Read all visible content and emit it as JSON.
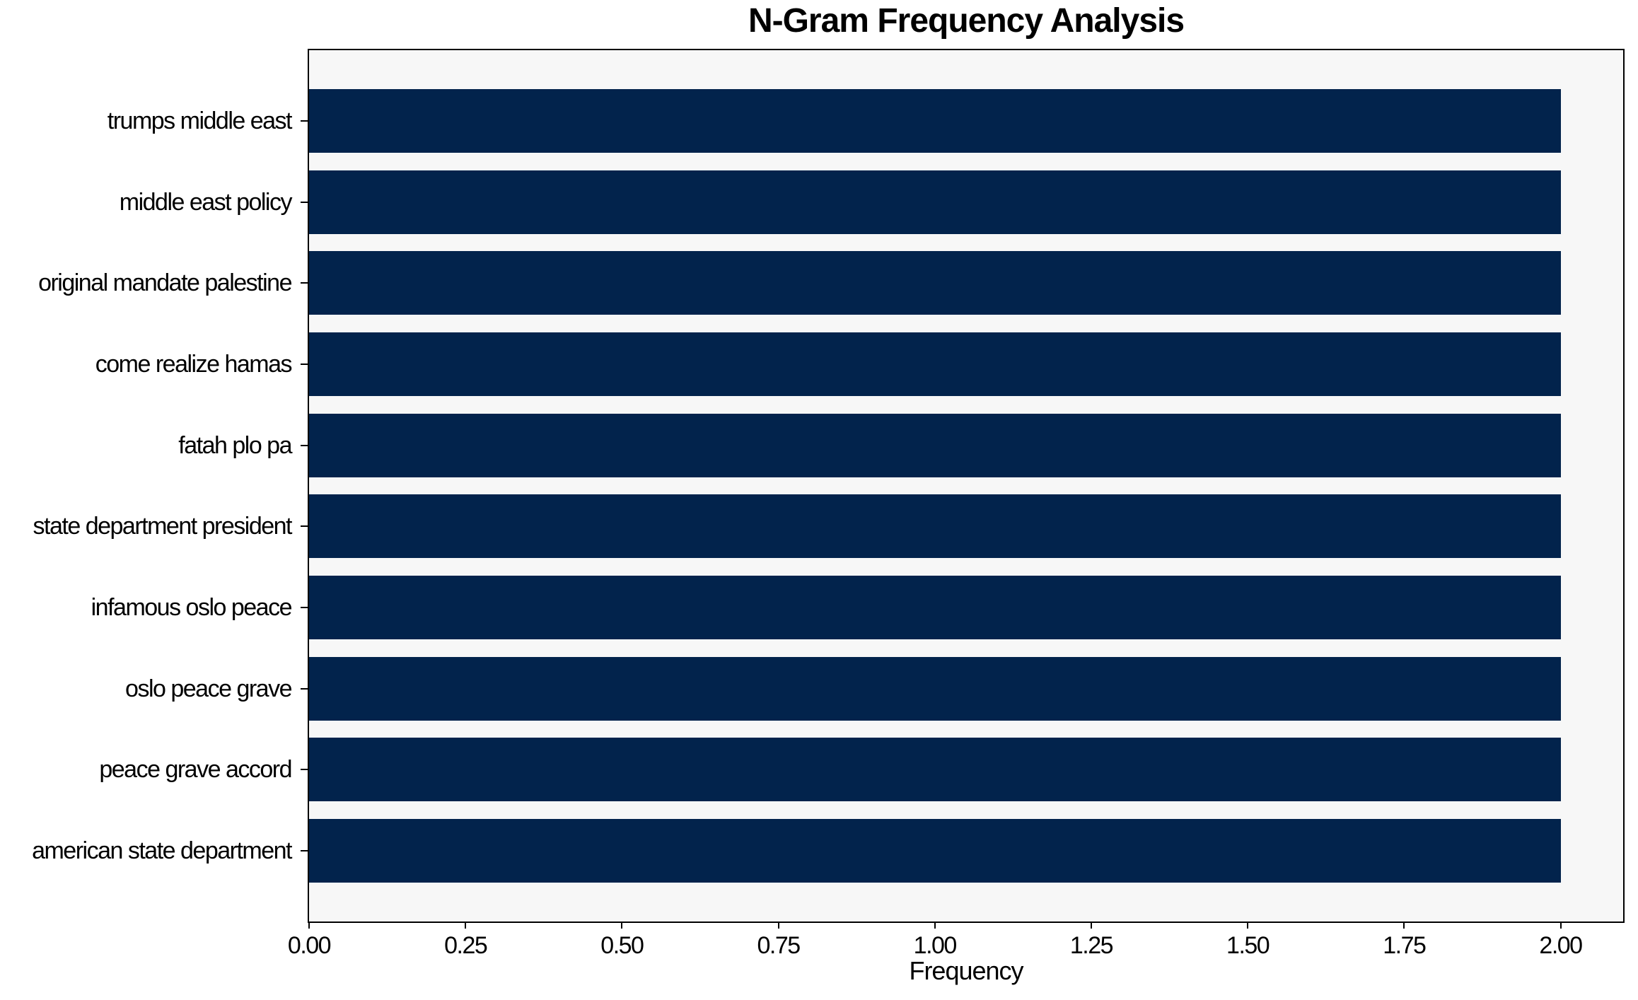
{
  "chart_data": {
    "type": "bar",
    "orientation": "horizontal",
    "title": "N-Gram Frequency Analysis",
    "xlabel": "Frequency",
    "ylabel": "",
    "categories": [
      "trumps middle east",
      "middle east policy",
      "original mandate palestine",
      "come realize hamas",
      "fatah plo pa",
      "state department president",
      "infamous oslo peace",
      "oslo peace grave",
      "peace grave accord",
      "american state department"
    ],
    "values": [
      2,
      2,
      2,
      2,
      2,
      2,
      2,
      2,
      2,
      2
    ],
    "x_ticks": [
      "0.00",
      "0.25",
      "0.50",
      "0.75",
      "1.00",
      "1.25",
      "1.50",
      "1.75",
      "2.00"
    ],
    "xlim": [
      0,
      2.1
    ],
    "grid": false,
    "legend": "none",
    "colors": {
      "bar": "#02234c",
      "plot_background": "#f7f7f7",
      "figure_background": "#ffffff",
      "spine": "#000000",
      "text": "#000000"
    }
  }
}
